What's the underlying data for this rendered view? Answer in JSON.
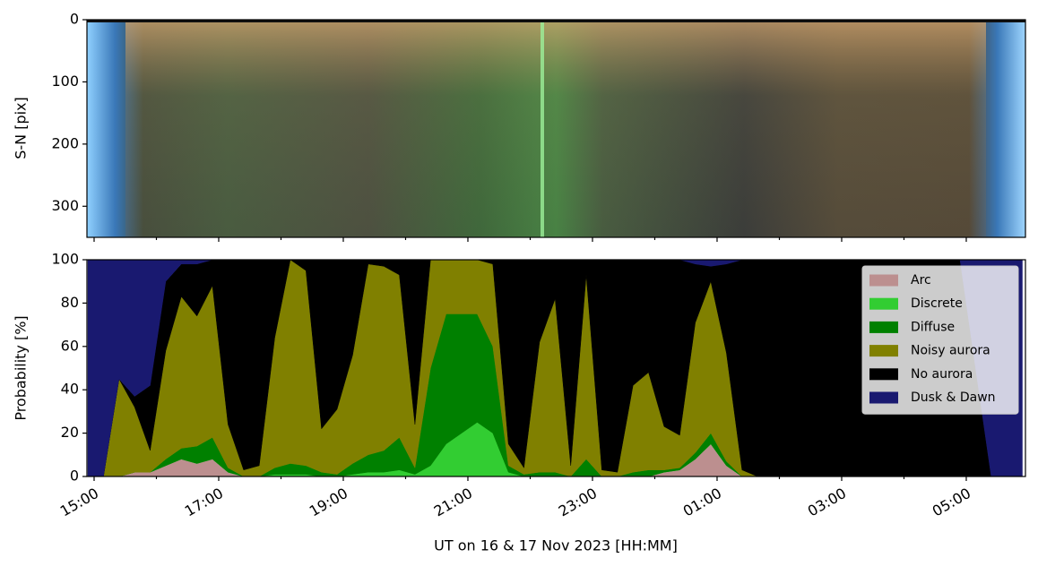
{
  "chart_data": [
    {
      "type": "image",
      "ylabel": "S-N [pix]",
      "ylim": [
        350,
        0
      ],
      "yticks": [
        0,
        100,
        200,
        300
      ]
    },
    {
      "type": "stacked_area",
      "xlabel": "UT on 16 & 17 Nov 2023 [HH:MM]",
      "ylabel": "Probability [%]",
      "xlim": [
        14.885,
        29.95
      ],
      "xticks": [
        {
          "value": 15,
          "label": "15:00"
        },
        {
          "value": 17,
          "label": "17:00"
        },
        {
          "value": 19,
          "label": "19:00"
        },
        {
          "value": 21,
          "label": "21:00"
        },
        {
          "value": 23,
          "label": "23:00"
        },
        {
          "value": 25,
          "label": "01:00"
        },
        {
          "value": 27,
          "label": "03:00"
        },
        {
          "value": 29,
          "label": "05:00"
        }
      ],
      "xminor_ticks": [
        16,
        18,
        20,
        22,
        24,
        26,
        28
      ],
      "ylim": [
        0,
        100
      ],
      "yticks": [
        0,
        20,
        40,
        60,
        80,
        100
      ],
      "legend": "upper right",
      "x": [
        14.9,
        15.15,
        15.4,
        15.65,
        15.9,
        16.15,
        16.4,
        16.65,
        16.9,
        17.15,
        17.4,
        17.65,
        17.9,
        18.15,
        18.4,
        18.65,
        18.9,
        19.15,
        19.4,
        19.65,
        19.9,
        20.15,
        20.4,
        20.65,
        20.9,
        21.15,
        21.4,
        21.65,
        21.9,
        22.15,
        22.4,
        22.65,
        22.9,
        23.15,
        23.4,
        23.65,
        23.9,
        24.15,
        24.4,
        24.65,
        24.9,
        25.15,
        25.4,
        25.65,
        25.9,
        26.15,
        26.4,
        26.65,
        26.9,
        27.15,
        27.4,
        27.65,
        27.9,
        28.15,
        28.4,
        28.65,
        28.9,
        29.15,
        29.4,
        29.65,
        29.9
      ],
      "series": [
        {
          "name": "Arc",
          "color": "#bc8f8f",
          "values": [
            0,
            0,
            0,
            2,
            2,
            5,
            8,
            6,
            8,
            2,
            0,
            0,
            0,
            0,
            0,
            0,
            0,
            0,
            0,
            0,
            0,
            0,
            0,
            0,
            0,
            0,
            0,
            0,
            0,
            0,
            0,
            0,
            0,
            0,
            0,
            0,
            0,
            2,
            3,
            8,
            15,
            5,
            0,
            0,
            0,
            0,
            0,
            0,
            0,
            0,
            0,
            0,
            0,
            0,
            0,
            0,
            0,
            0,
            0,
            0,
            0
          ]
        },
        {
          "name": "Discrete",
          "color": "#32cd32",
          "values": [
            0,
            0,
            0,
            0,
            0,
            0,
            0,
            0,
            0,
            0,
            0,
            0,
            1,
            1,
            1,
            0,
            0,
            1,
            2,
            2,
            3,
            1,
            5,
            15,
            20,
            25,
            20,
            2,
            0,
            0,
            0,
            0,
            0,
            0,
            0,
            0,
            0,
            0,
            0,
            0,
            0,
            0,
            0,
            0,
            0,
            0,
            0,
            0,
            0,
            0,
            0,
            0,
            0,
            0,
            0,
            0,
            0,
            0,
            0,
            0,
            0
          ]
        },
        {
          "name": "Diffuse",
          "color": "#008000",
          "values": [
            0,
            0,
            0,
            0,
            0,
            3,
            5,
            8,
            10,
            2,
            0,
            0,
            3,
            5,
            4,
            2,
            1,
            5,
            8,
            10,
            15,
            3,
            45,
            60,
            55,
            50,
            40,
            3,
            1,
            2,
            2,
            0,
            8,
            0,
            0,
            2,
            3,
            1,
            1,
            3,
            5,
            2,
            0,
            0,
            0,
            0,
            0,
            0,
            0,
            0,
            0,
            0,
            0,
            0,
            0,
            0,
            0,
            0,
            0,
            0,
            0
          ]
        },
        {
          "name": "Noisy aurora",
          "color": "#808000",
          "values": [
            0,
            0,
            45,
            30,
            10,
            50,
            70,
            60,
            70,
            20,
            3,
            5,
            60,
            94,
            90,
            20,
            30,
            50,
            88,
            85,
            75,
            20,
            50,
            25,
            25,
            25,
            38,
            10,
            3,
            60,
            80,
            5,
            85,
            3,
            2,
            40,
            45,
            20,
            15,
            60,
            70,
            50,
            3,
            0,
            0,
            0,
            0,
            0,
            0,
            0,
            0,
            0,
            0,
            0,
            0,
            0,
            0,
            0,
            0,
            0,
            0
          ]
        },
        {
          "name": "No aurora",
          "color": "#000000",
          "values": [
            0,
            0,
            0,
            5,
            30,
            32,
            15,
            24,
            12,
            76,
            97,
            95,
            36,
            0,
            5,
            78,
            69,
            44,
            2,
            3,
            7,
            76,
            0,
            0,
            0,
            0,
            2,
            85,
            96,
            38,
            18,
            95,
            7,
            97,
            98,
            58,
            52,
            77,
            81,
            27,
            7,
            41,
            97,
            100,
            100,
            100,
            100,
            100,
            100,
            100,
            100,
            100,
            100,
            100,
            100,
            100,
            100,
            50,
            0,
            0,
            0
          ]
        },
        {
          "name": "Dusk & Dawn",
          "color": "#191970",
          "values": [
            100,
            100,
            55,
            63,
            58,
            10,
            2,
            2,
            0,
            0,
            0,
            0,
            0,
            0,
            0,
            0,
            0,
            0,
            0,
            0,
            0,
            0,
            0,
            0,
            0,
            0,
            0,
            0,
            0,
            0,
            0,
            0,
            0,
            0,
            0,
            0,
            0,
            0,
            0,
            2,
            3,
            2,
            0,
            0,
            0,
            0,
            0,
            0,
            0,
            0,
            0,
            0,
            0,
            0,
            0,
            0,
            0,
            50,
            100,
            100,
            100
          ]
        }
      ]
    }
  ]
}
